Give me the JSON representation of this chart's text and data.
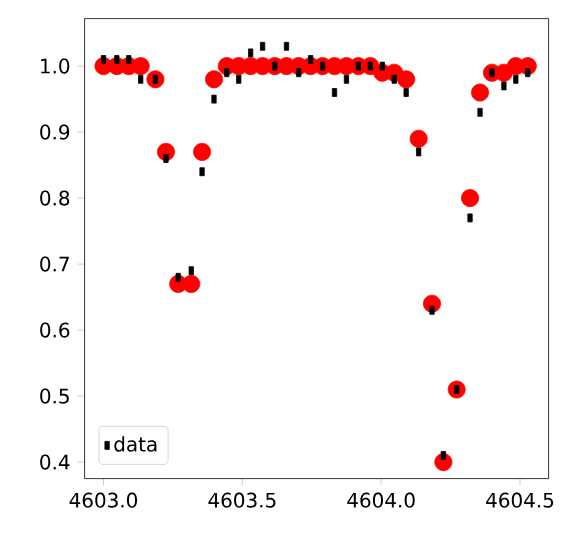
{
  "chart_data": {
    "type": "scatter",
    "x": [
      4603.0,
      4603.048,
      4603.091,
      4603.134,
      4603.187,
      4603.225,
      4603.269,
      4603.316,
      4603.355,
      4603.398,
      4603.444,
      4603.487,
      4603.53,
      4603.573,
      4603.617,
      4603.659,
      4603.703,
      4603.746,
      4603.789,
      4603.832,
      4603.875,
      4603.918,
      4603.961,
      4604.004,
      4604.047,
      4604.09,
      4604.135,
      4604.183,
      4604.224,
      4604.272,
      4604.32,
      4604.356,
      4604.399,
      4604.442,
      4604.485,
      4604.528
    ],
    "series": [
      {
        "color": "#ff0000",
        "marker": "circle",
        "values": [
          1.0,
          1.0,
          1.0,
          1.0,
          0.98,
          0.87,
          0.67,
          0.67,
          0.87,
          0.98,
          1.0,
          1.0,
          1.0,
          1.0,
          1.0,
          1.0,
          1.0,
          1.0,
          1.0,
          1.0,
          1.0,
          1.0,
          1.0,
          0.99,
          0.99,
          0.98,
          0.89,
          0.64,
          0.4,
          0.51,
          0.8,
          0.96,
          0.99,
          0.99,
          1.0,
          1.0
        ]
      },
      {
        "name": "data",
        "color": "#000000",
        "marker": "square",
        "values": [
          1.01,
          1.01,
          1.01,
          0.98,
          0.98,
          0.86,
          0.68,
          0.69,
          0.84,
          0.95,
          0.99,
          0.98,
          1.02,
          1.03,
          1.0,
          1.03,
          0.99,
          1.01,
          1.0,
          0.96,
          0.98,
          1.0,
          1.0,
          1.0,
          0.98,
          0.96,
          0.87,
          0.63,
          0.41,
          0.51,
          0.77,
          0.93,
          0.99,
          0.97,
          0.98,
          0.99
        ]
      }
    ],
    "xlim": [
      4602.932,
      4604.603
    ],
    "ylim": [
      0.375,
      1.072
    ],
    "xticks": [
      {
        "value": 4603.0,
        "label": "4603.0"
      },
      {
        "value": 4603.5,
        "label": "4603.5"
      },
      {
        "value": 4604.0,
        "label": "4604.0"
      },
      {
        "value": 4604.5,
        "label": "4604.5"
      }
    ],
    "yticks": [
      {
        "value": 0.4,
        "label": "0.4"
      },
      {
        "value": 0.5,
        "label": "0.5"
      },
      {
        "value": 0.6,
        "label": "0.6"
      },
      {
        "value": 0.7,
        "label": "0.7"
      },
      {
        "value": 0.8,
        "label": "0.8"
      },
      {
        "value": 0.9,
        "label": "0.9"
      },
      {
        "value": 1.0,
        "label": "1.0"
      }
    ],
    "legend": "bottom left",
    "grid": false
  }
}
